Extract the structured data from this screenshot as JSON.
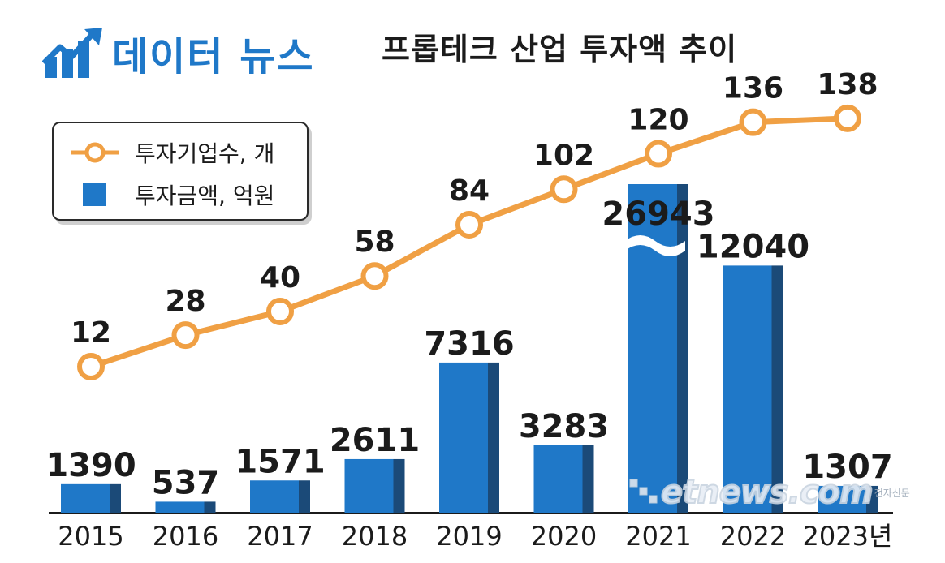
{
  "brand": {
    "logo_text": "데이터 뉴스",
    "color": "#1f78c8"
  },
  "watermark": {
    "text": "etnews.com",
    "small": "전자신문"
  },
  "chart_data": {
    "type": "bar",
    "title": "프롭테크 산업 투자액 추이",
    "categories": [
      "2015",
      "2016",
      "2017",
      "2018",
      "2019",
      "2020",
      "2021",
      "2022",
      "2023년"
    ],
    "series": [
      {
        "name": "투자금액, 억원",
        "type": "bar",
        "color": "#1f78c8",
        "values": [
          1390,
          537,
          1571,
          2611,
          7316,
          3283,
          26943,
          12040,
          1307
        ],
        "labels": [
          "1390",
          "537",
          "1571",
          "2611",
          "7316",
          "3283",
          "26943",
          "12040",
          "1307"
        ],
        "broken_axis_category": "2021"
      },
      {
        "name": "투자기업수, 개",
        "type": "line",
        "color": "#f0a044",
        "values": [
          12,
          28,
          40,
          58,
          84,
          102,
          120,
          136,
          138
        ],
        "labels": [
          "12",
          "28",
          "40",
          "58",
          "84",
          "102",
          "120",
          "136",
          "138"
        ]
      }
    ],
    "legend": [
      "투자기업수, 개",
      "투자금액, 억원"
    ],
    "legend_position": "top-left"
  }
}
